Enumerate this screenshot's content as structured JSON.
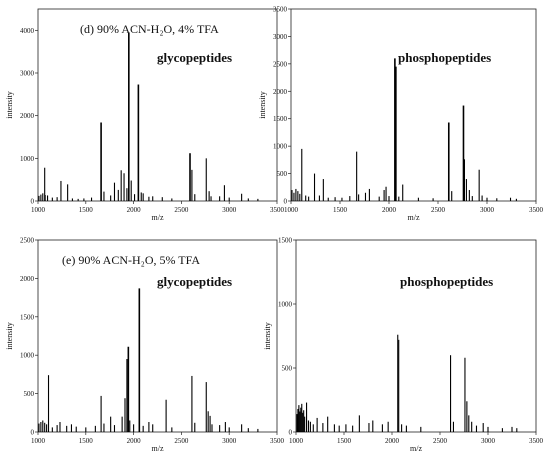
{
  "chart_data": [
    {
      "type": "bar",
      "panel_label": "(d)  90% ACN-H₂O, 4% TFA",
      "annotation": "glycopeptides",
      "xlabel": "m/z",
      "ylabel": "intensity",
      "xlim": [
        1000,
        3500
      ],
      "ylim": [
        0,
        4500
      ],
      "xticks": [
        1000,
        1500,
        2000,
        2500,
        3000,
        3500
      ],
      "yticks": [
        0,
        1000,
        2000,
        3000,
        4000
      ],
      "peaks": [
        [
          1010,
          120
        ],
        [
          1030,
          150
        ],
        [
          1050,
          180
        ],
        [
          1075,
          140
        ],
        [
          1100,
          130
        ],
        [
          1070,
          780
        ],
        [
          1150,
          80
        ],
        [
          1200,
          90
        ],
        [
          1240,
          470
        ],
        [
          1310,
          390
        ],
        [
          1360,
          60
        ],
        [
          1420,
          50
        ],
        [
          1480,
          60
        ],
        [
          1560,
          80
        ],
        [
          1660,
          1840
        ],
        [
          1690,
          220
        ],
        [
          1760,
          130
        ],
        [
          1800,
          430
        ],
        [
          1840,
          260
        ],
        [
          1870,
          720
        ],
        [
          1900,
          650
        ],
        [
          1930,
          300
        ],
        [
          1950,
          3950
        ],
        [
          1975,
          480
        ],
        [
          2010,
          160
        ],
        [
          2050,
          2730
        ],
        [
          2080,
          200
        ],
        [
          2100,
          180
        ],
        [
          2160,
          100
        ],
        [
          2200,
          110
        ],
        [
          2300,
          90
        ],
        [
          2400,
          60
        ],
        [
          2590,
          1120
        ],
        [
          2610,
          730
        ],
        [
          2640,
          160
        ],
        [
          2760,
          1000
        ],
        [
          2790,
          230
        ],
        [
          2810,
          110
        ],
        [
          2900,
          110
        ],
        [
          2950,
          370
        ],
        [
          3000,
          80
        ],
        [
          3130,
          170
        ],
        [
          3200,
          60
        ],
        [
          3300,
          50
        ]
      ]
    },
    {
      "type": "bar",
      "annotation": "phosphopeptides",
      "xlabel": "m/z",
      "ylabel": "intensity",
      "xlim": [
        1000,
        3500
      ],
      "ylim": [
        0,
        3500
      ],
      "xticks": [
        1000,
        1500,
        2000,
        2500,
        3000,
        3500
      ],
      "yticks": [
        0,
        500,
        1000,
        1500,
        2000,
        2500,
        3000,
        3500
      ],
      "peaks": [
        [
          1010,
          200
        ],
        [
          1030,
          150
        ],
        [
          1050,
          220
        ],
        [
          1070,
          180
        ],
        [
          1090,
          130
        ],
        [
          1110,
          950
        ],
        [
          1150,
          100
        ],
        [
          1180,
          80
        ],
        [
          1240,
          500
        ],
        [
          1290,
          100
        ],
        [
          1330,
          400
        ],
        [
          1380,
          60
        ],
        [
          1450,
          70
        ],
        [
          1520,
          60
        ],
        [
          1600,
          90
        ],
        [
          1670,
          900
        ],
        [
          1690,
          120
        ],
        [
          1760,
          150
        ],
        [
          1800,
          220
        ],
        [
          1900,
          80
        ],
        [
          1950,
          200
        ],
        [
          1970,
          260
        ],
        [
          2000,
          90
        ],
        [
          2060,
          2600
        ],
        [
          2070,
          2450
        ],
        [
          2100,
          80
        ],
        [
          2140,
          300
        ],
        [
          2300,
          60
        ],
        [
          2450,
          50
        ],
        [
          2610,
          1430
        ],
        [
          2640,
          180
        ],
        [
          2760,
          1740
        ],
        [
          2770,
          760
        ],
        [
          2790,
          400
        ],
        [
          2820,
          200
        ],
        [
          2850,
          90
        ],
        [
          2920,
          570
        ],
        [
          2950,
          100
        ],
        [
          3000,
          60
        ],
        [
          3100,
          50
        ],
        [
          3240,
          60
        ],
        [
          3300,
          40
        ]
      ]
    },
    {
      "type": "bar",
      "panel_label": "(e)  90% ACN-H₂O, 5% TFA",
      "annotation": "glycopeptides",
      "xlabel": "m/z",
      "ylabel": "intensity",
      "xlim": [
        1000,
        3500
      ],
      "ylim": [
        0,
        2500
      ],
      "xticks": [
        1000,
        1500,
        2000,
        2500,
        3000,
        3500
      ],
      "yticks": [
        0,
        500,
        1000,
        1500,
        2000,
        2500
      ],
      "peaks": [
        [
          1010,
          110
        ],
        [
          1030,
          130
        ],
        [
          1050,
          150
        ],
        [
          1070,
          120
        ],
        [
          1090,
          100
        ],
        [
          1110,
          740
        ],
        [
          1150,
          60
        ],
        [
          1200,
          90
        ],
        [
          1230,
          130
        ],
        [
          1300,
          80
        ],
        [
          1350,
          100
        ],
        [
          1400,
          70
        ],
        [
          1500,
          60
        ],
        [
          1600,
          80
        ],
        [
          1660,
          470
        ],
        [
          1690,
          110
        ],
        [
          1760,
          200
        ],
        [
          1800,
          90
        ],
        [
          1880,
          200
        ],
        [
          1910,
          440
        ],
        [
          1930,
          950
        ],
        [
          1945,
          1110
        ],
        [
          1960,
          150
        ],
        [
          2000,
          100
        ],
        [
          2060,
          1870
        ],
        [
          2100,
          80
        ],
        [
          2160,
          130
        ],
        [
          2200,
          100
        ],
        [
          2340,
          420
        ],
        [
          2400,
          60
        ],
        [
          2610,
          730
        ],
        [
          2640,
          120
        ],
        [
          2760,
          650
        ],
        [
          2780,
          270
        ],
        [
          2800,
          210
        ],
        [
          2820,
          100
        ],
        [
          2900,
          90
        ],
        [
          2960,
          130
        ],
        [
          3000,
          60
        ],
        [
          3130,
          100
        ],
        [
          3200,
          50
        ],
        [
          3300,
          40
        ]
      ]
    },
    {
      "type": "bar",
      "annotation": "phosphopeptides",
      "xlabel": "m/z",
      "ylabel": "intensity",
      "xlim": [
        1000,
        3500
      ],
      "ylim": [
        0,
        1500
      ],
      "xticks": [
        1000,
        1500,
        2000,
        2500,
        3000,
        3500
      ],
      "yticks": [
        0,
        500,
        1000,
        1500
      ],
      "peaks": [
        [
          1010,
          140
        ],
        [
          1020,
          180
        ],
        [
          1030,
          210
        ],
        [
          1040,
          160
        ],
        [
          1050,
          190
        ],
        [
          1060,
          220
        ],
        [
          1070,
          150
        ],
        [
          1080,
          170
        ],
        [
          1090,
          120
        ],
        [
          1110,
          230
        ],
        [
          1130,
          90
        ],
        [
          1150,
          80
        ],
        [
          1180,
          60
        ],
        [
          1220,
          110
        ],
        [
          1280,
          70
        ],
        [
          1330,
          120
        ],
        [
          1400,
          60
        ],
        [
          1450,
          50
        ],
        [
          1520,
          60
        ],
        [
          1590,
          50
        ],
        [
          1660,
          130
        ],
        [
          1760,
          70
        ],
        [
          1800,
          90
        ],
        [
          1900,
          60
        ],
        [
          1960,
          80
        ],
        [
          2060,
          760
        ],
        [
          2070,
          720
        ],
        [
          2100,
          60
        ],
        [
          2150,
          50
        ],
        [
          2300,
          40
        ],
        [
          2610,
          600
        ],
        [
          2640,
          80
        ],
        [
          2760,
          580
        ],
        [
          2780,
          240
        ],
        [
          2800,
          130
        ],
        [
          2830,
          80
        ],
        [
          2880,
          50
        ],
        [
          2950,
          70
        ],
        [
          3000,
          40
        ],
        [
          3150,
          30
        ],
        [
          3250,
          40
        ],
        [
          3300,
          30
        ]
      ]
    }
  ]
}
